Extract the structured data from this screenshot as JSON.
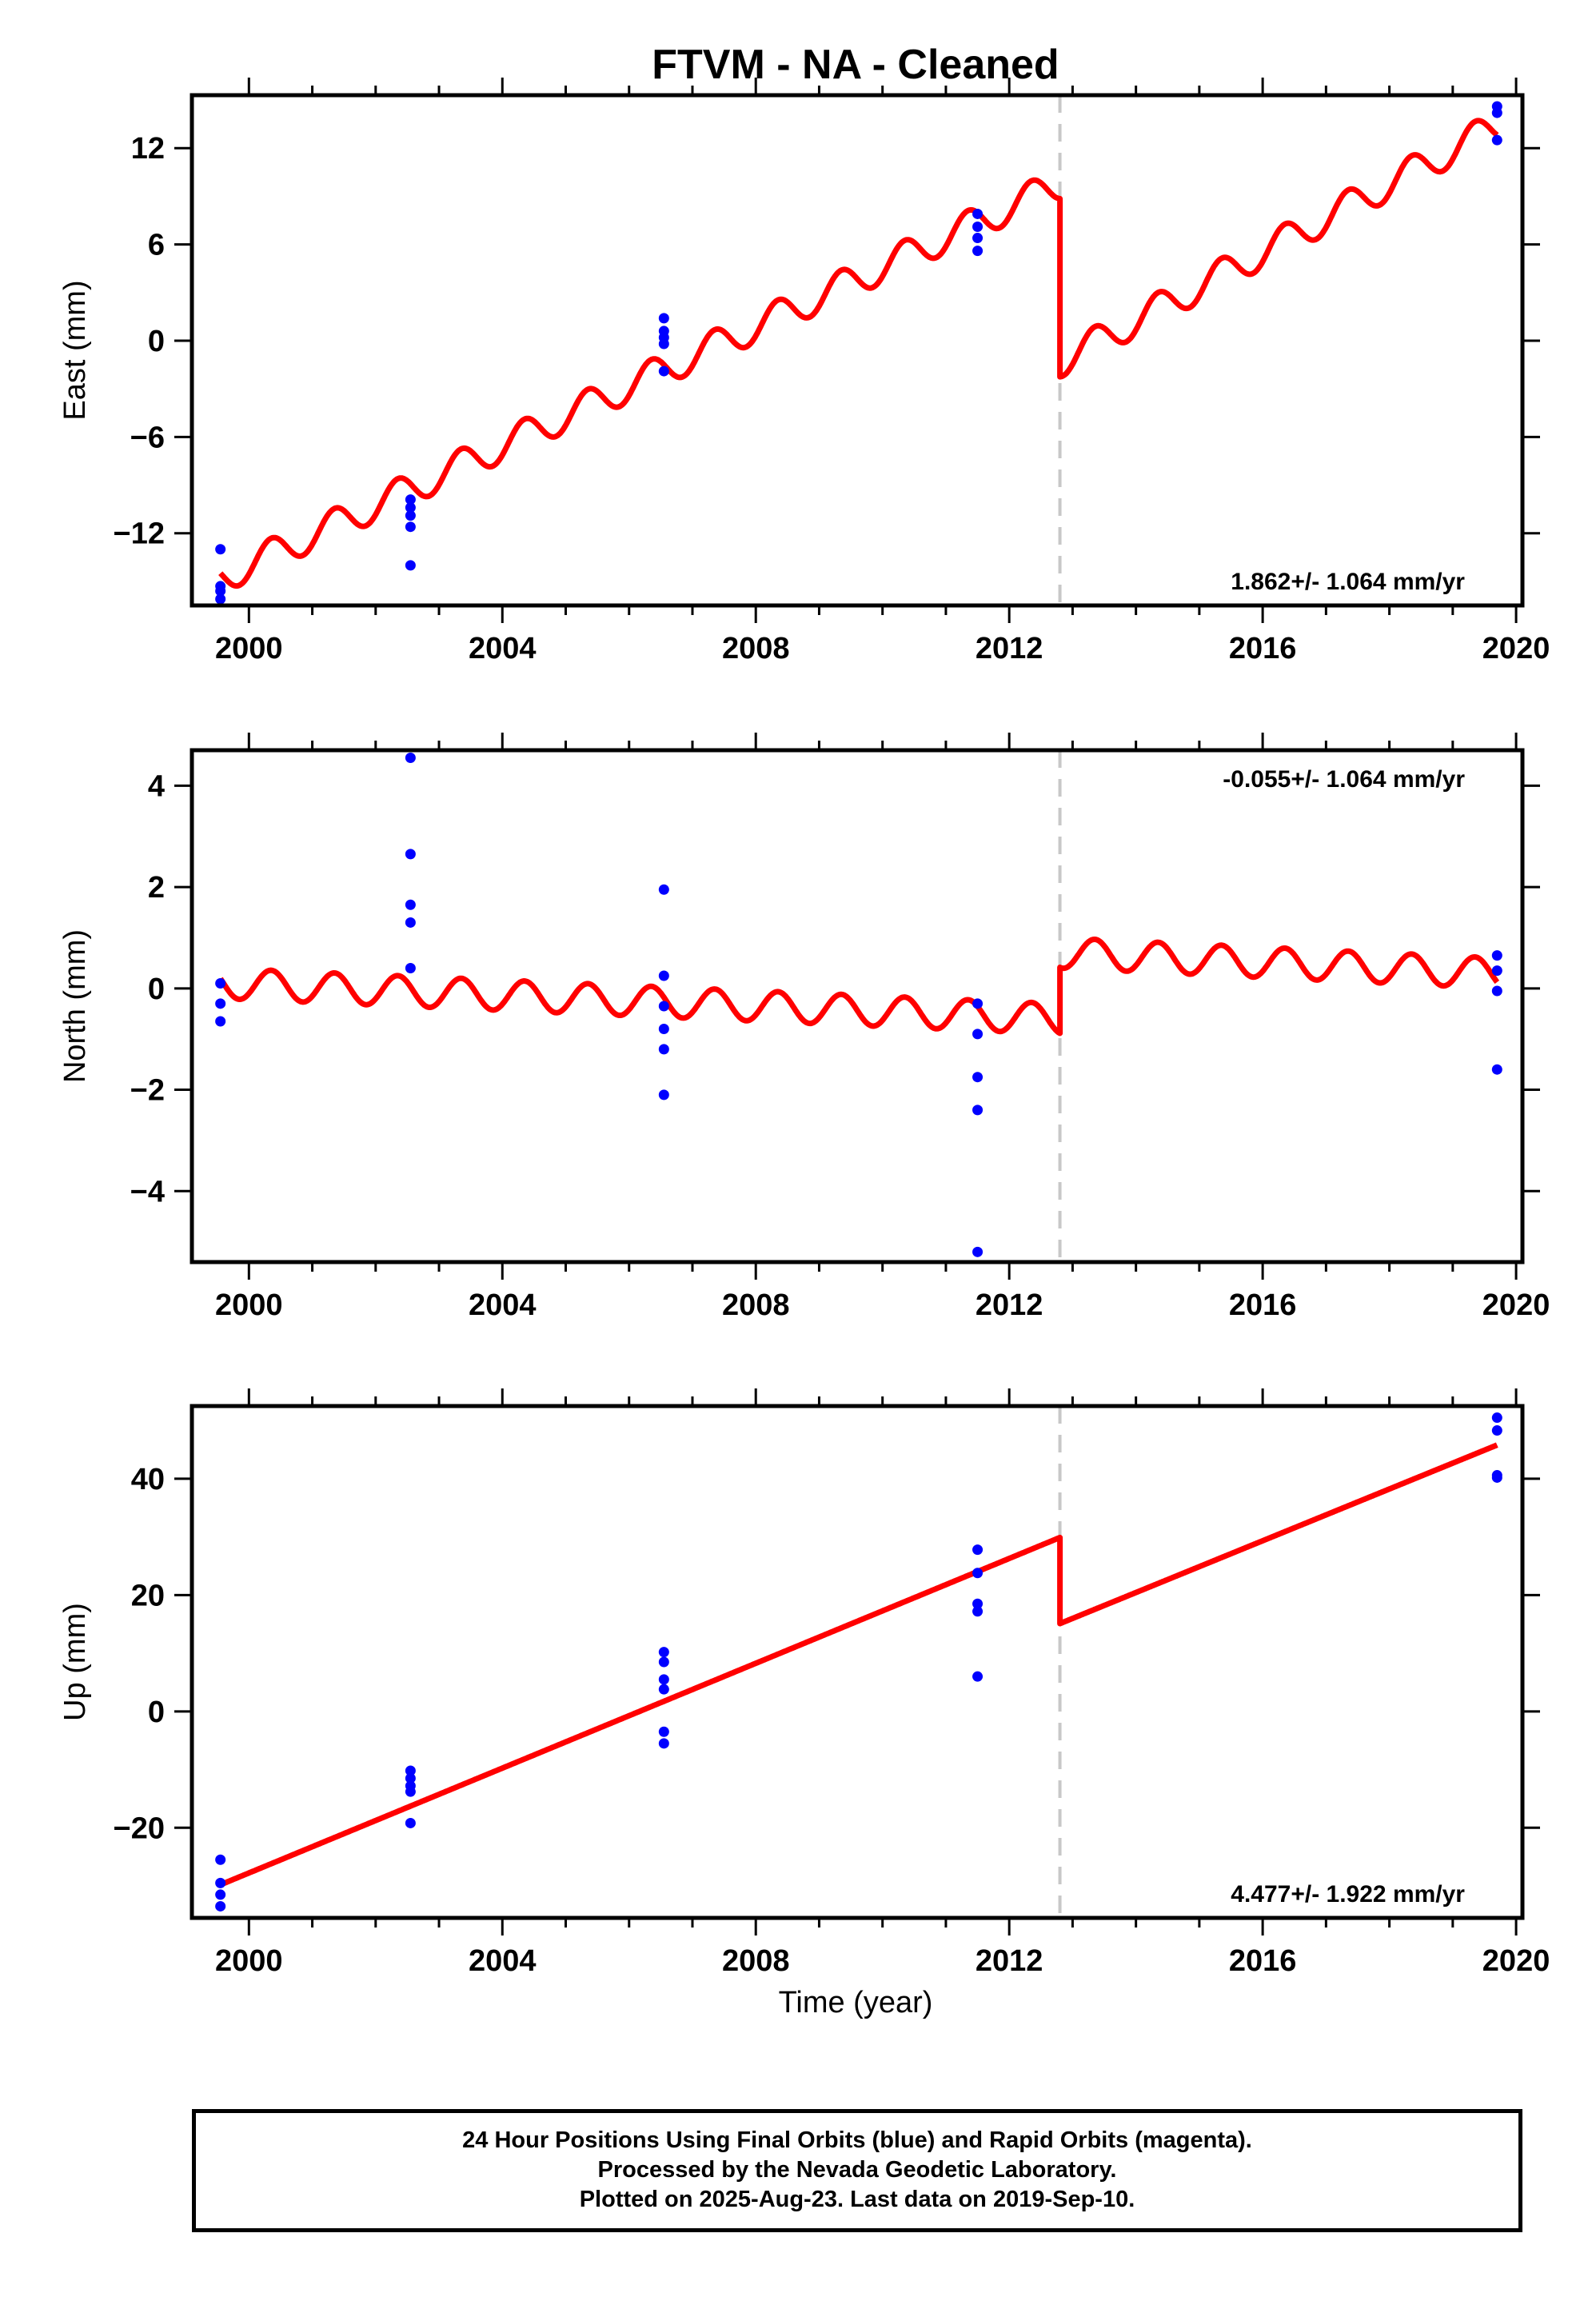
{
  "title": "FTVM  - NA - Cleaned",
  "xlabel": "Time (year)",
  "caption": {
    "line1": "24 Hour Positions Using Final Orbits (blue) and Rapid Orbits (magenta).",
    "line2": "Processed by the Nevada Geodetic Laboratory.",
    "line3": "Plotted on 2025-Aug-23. Last data on 2019-Sep-10."
  },
  "colors": {
    "data": "#0000ff",
    "model": "#ff0000",
    "offset_line": "#c8c8c8"
  },
  "chart_data": [
    {
      "type": "scatter",
      "component": "east",
      "ylabel": "East (mm)",
      "rate": "1.862+/- 1.064 mm/yr",
      "xlim": [
        1999.1,
        2020.1
      ],
      "ylim": [
        -16.5,
        15.3
      ],
      "xticks": [
        2000,
        2004,
        2008,
        2012,
        2016,
        2020
      ],
      "yticks": [
        -12,
        -6,
        0,
        6,
        12
      ],
      "offset_epoch": 2012.8,
      "points": [
        {
          "x": 1999.55,
          "y": -13.0
        },
        {
          "x": 1999.55,
          "y": -15.3
        },
        {
          "x": 1999.55,
          "y": -15.6
        },
        {
          "x": 1999.55,
          "y": -16.1
        },
        {
          "x": 2002.55,
          "y": -9.9
        },
        {
          "x": 2002.55,
          "y": -10.4
        },
        {
          "x": 2002.55,
          "y": -10.9
        },
        {
          "x": 2002.55,
          "y": -11.6
        },
        {
          "x": 2002.55,
          "y": -14.0
        },
        {
          "x": 2006.55,
          "y": 1.4
        },
        {
          "x": 2006.55,
          "y": 0.6
        },
        {
          "x": 2006.55,
          "y": 0.2
        },
        {
          "x": 2006.55,
          "y": -0.2
        },
        {
          "x": 2006.55,
          "y": -1.9
        },
        {
          "x": 2011.5,
          "y": 7.9
        },
        {
          "x": 2011.5,
          "y": 7.1
        },
        {
          "x": 2011.5,
          "y": 6.4
        },
        {
          "x": 2011.5,
          "y": 5.6
        },
        {
          "x": 2019.7,
          "y": 14.6
        },
        {
          "x": 2019.7,
          "y": 14.2
        },
        {
          "x": 2019.7,
          "y": 12.5
        }
      ],
      "model": {
        "segments": [
          {
            "x_start": 1999.55,
            "x_end": 2012.8,
            "y_start": -14.8,
            "y_end": 9.8
          },
          {
            "x_start": 2012.8,
            "x_end": 2019.7,
            "y_start": -1.3,
            "y_end": 13.4
          }
        ],
        "seasonal_amplitude": 1.0
      }
    },
    {
      "type": "scatter",
      "component": "north",
      "ylabel": "North (mm)",
      "rate": "-0.055+/- 1.064 mm/yr",
      "xlim": [
        1999.1,
        2020.1
      ],
      "ylim": [
        -5.4,
        4.7
      ],
      "xticks": [
        2000,
        2004,
        2008,
        2012,
        2016,
        2020
      ],
      "yticks": [
        -4,
        -2,
        0,
        2,
        4
      ],
      "offset_epoch": 2012.8,
      "points": [
        {
          "x": 1999.55,
          "y": 0.1
        },
        {
          "x": 1999.55,
          "y": -0.3
        },
        {
          "x": 1999.55,
          "y": -0.65
        },
        {
          "x": 2002.55,
          "y": 4.55
        },
        {
          "x": 2002.55,
          "y": 2.65
        },
        {
          "x": 2002.55,
          "y": 1.65
        },
        {
          "x": 2002.55,
          "y": 1.3
        },
        {
          "x": 2002.55,
          "y": 0.4
        },
        {
          "x": 2006.55,
          "y": 1.95
        },
        {
          "x": 2006.55,
          "y": 0.25
        },
        {
          "x": 2006.55,
          "y": -0.35
        },
        {
          "x": 2006.55,
          "y": -0.8
        },
        {
          "x": 2006.55,
          "y": -1.2
        },
        {
          "x": 2006.55,
          "y": -2.1
        },
        {
          "x": 2011.5,
          "y": -0.3
        },
        {
          "x": 2011.5,
          "y": -0.9
        },
        {
          "x": 2011.5,
          "y": -1.75
        },
        {
          "x": 2011.5,
          "y": -2.4
        },
        {
          "x": 2011.5,
          "y": -5.2
        },
        {
          "x": 2019.7,
          "y": 0.65
        },
        {
          "x": 2019.7,
          "y": 0.35
        },
        {
          "x": 2019.7,
          "y": -0.05
        },
        {
          "x": 2019.7,
          "y": -1.6
        }
      ],
      "model": {
        "segments": [
          {
            "x_start": 1999.55,
            "x_end": 2012.8,
            "y_start": 0.1,
            "y_end": -0.6
          },
          {
            "x_start": 2012.8,
            "x_end": 2019.7,
            "y_start": 0.7,
            "y_end": 0.3
          }
        ],
        "seasonal_amplitude": 0.3
      }
    },
    {
      "type": "scatter",
      "component": "up",
      "ylabel": "Up (mm)",
      "rate": "4.477+/- 1.922 mm/yr",
      "xlim": [
        1999.1,
        2020.1
      ],
      "ylim": [
        -35.5,
        52.5
      ],
      "xticks": [
        2000,
        2004,
        2008,
        2012,
        2016,
        2020
      ],
      "yticks": [
        -20,
        0,
        20,
        40
      ],
      "offset_epoch": 2012.8,
      "points": [
        {
          "x": 1999.55,
          "y": -25.5
        },
        {
          "x": 1999.55,
          "y": -29.5
        },
        {
          "x": 1999.55,
          "y": -31.5
        },
        {
          "x": 1999.55,
          "y": -33.5
        },
        {
          "x": 2002.55,
          "y": -10.2
        },
        {
          "x": 2002.55,
          "y": -11.5
        },
        {
          "x": 2002.55,
          "y": -12.8
        },
        {
          "x": 2002.55,
          "y": -13.8
        },
        {
          "x": 2002.55,
          "y": -19.2
        },
        {
          "x": 2006.55,
          "y": 10.2
        },
        {
          "x": 2006.55,
          "y": 8.5
        },
        {
          "x": 2006.55,
          "y": 5.5
        },
        {
          "x": 2006.55,
          "y": 3.8
        },
        {
          "x": 2006.55,
          "y": -3.5
        },
        {
          "x": 2006.55,
          "y": -5.5
        },
        {
          "x": 2011.5,
          "y": 27.8
        },
        {
          "x": 2011.5,
          "y": 23.8
        },
        {
          "x": 2011.5,
          "y": 18.5
        },
        {
          "x": 2011.5,
          "y": 17.2
        },
        {
          "x": 2011.5,
          "y": 6.0
        },
        {
          "x": 2019.7,
          "y": 50.5
        },
        {
          "x": 2019.7,
          "y": 48.3
        },
        {
          "x": 2019.7,
          "y": 40.6
        },
        {
          "x": 2019.7,
          "y": 40.2
        }
      ],
      "model": {
        "segments": [
          {
            "x_start": 1999.55,
            "x_end": 2012.8,
            "y_start": -29.8,
            "y_end": 29.9
          },
          {
            "x_start": 2012.8,
            "x_end": 2019.7,
            "y_start": 15.1,
            "y_end": 45.8
          }
        ],
        "seasonal_amplitude": 0
      }
    }
  ]
}
